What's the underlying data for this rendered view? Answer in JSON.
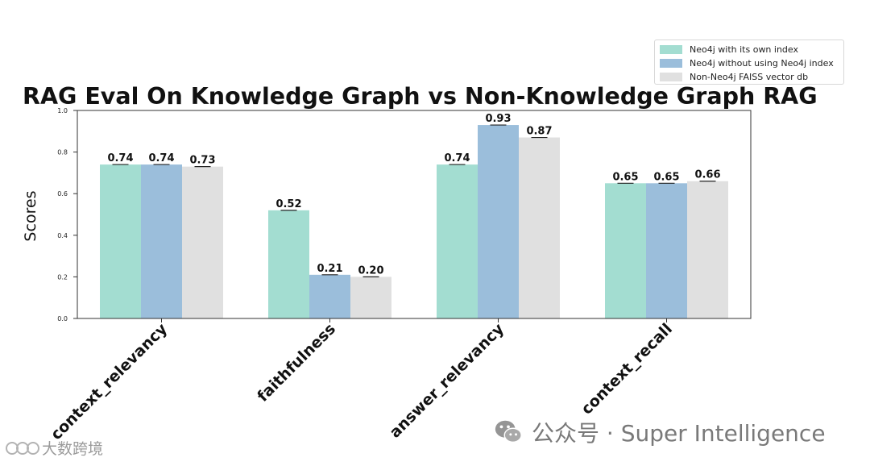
{
  "chart_data": {
    "type": "bar",
    "title": "RAG Eval On Knowledge Graph vs Non-Knowledge Graph RAG",
    "ylabel": "Scores",
    "xlabel": "",
    "ylim": [
      0,
      1.0
    ],
    "yticks": [
      "0.0",
      "0.2",
      "0.4",
      "0.6",
      "0.8",
      "1.0"
    ],
    "categories": [
      "context_relevancy",
      "faithfulness",
      "answer_relevancy",
      "context_recall"
    ],
    "series": [
      {
        "name": "Neo4j with its own index",
        "color": "#a3ddd1",
        "values": [
          0.74,
          0.52,
          0.74,
          0.65
        ],
        "labels": [
          "0.74",
          "0.52",
          "0.74",
          "0.65"
        ]
      },
      {
        "name": "Neo4j without using Neo4j index",
        "color": "#9bbedb",
        "values": [
          0.74,
          0.21,
          0.93,
          0.65
        ],
        "labels": [
          "0.74",
          "0.21",
          "0.93",
          "0.65"
        ]
      },
      {
        "name": "Non-Neo4j FAISS vector db",
        "color": "#e0e0e0",
        "values": [
          0.73,
          0.2,
          0.87,
          0.66
        ],
        "labels": [
          "0.73",
          "0.20",
          "0.87",
          "0.66"
        ]
      }
    ],
    "legend_position": "top-right",
    "grid": false
  },
  "watermark": {
    "text": "公众号 · Super Intelligence",
    "text2": "大数跨境",
    "icon": "wechat-icon"
  }
}
